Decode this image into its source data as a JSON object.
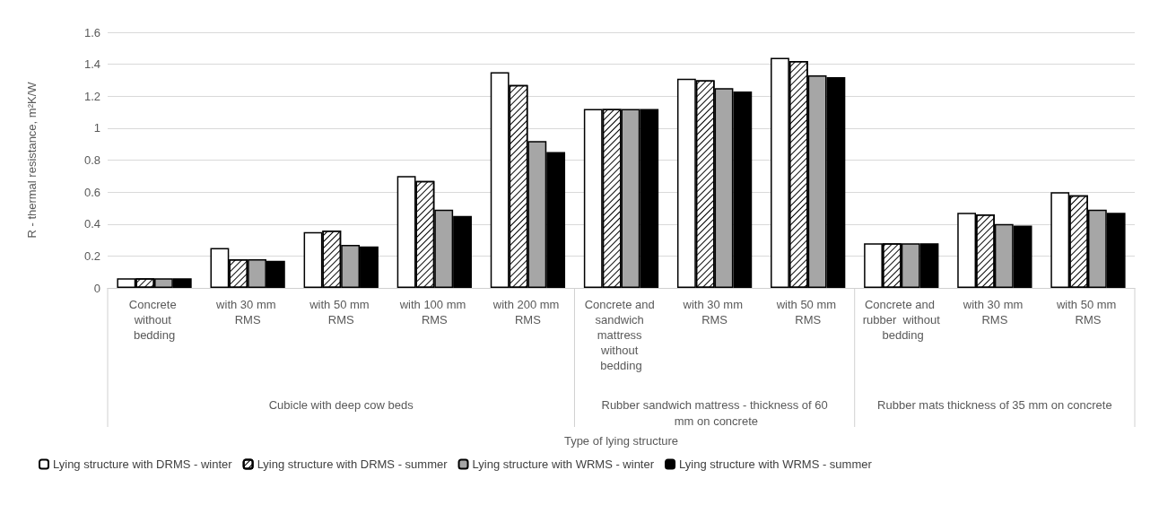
{
  "chart_data": {
    "type": "bar",
    "ylabel": "R - thermal resistance, m²K/W",
    "categories": [
      "Concrete without bedding",
      "with 30 mm RMS",
      "with 50 mm RMS",
      "with 100 mm RMS",
      "with 200 mm RMS",
      "Concrete and sandwich mattress without bedding",
      "with 30 mm RMS",
      "with 50 mm RMS",
      "Concrete and rubber  without bedding",
      "with 30 mm RMS",
      "with 50 mm RMS"
    ],
    "series": [
      {
        "name": "Lying structure with DRMS - winter",
        "color": "#ffffff",
        "values": [
          0.06,
          0.25,
          0.35,
          0.7,
          1.35,
          1.12,
          1.31,
          1.44,
          0.28,
          0.47,
          0.6
        ]
      },
      {
        "name": "Lying structure with DRMS - summer",
        "color": "#ffffff",
        "values": [
          0.06,
          0.18,
          0.36,
          0.67,
          1.27,
          1.12,
          1.3,
          1.42,
          0.28,
          0.46,
          0.58
        ]
      },
      {
        "name": "Lying structure with WRMS - winter",
        "color": "#a6a6a6",
        "values": [
          0.06,
          0.18,
          0.27,
          0.49,
          0.92,
          1.12,
          1.25,
          1.33,
          0.28,
          0.4,
          0.49
        ]
      },
      {
        "name": "Lying structure with WRMS - summer",
        "color": "#000000",
        "values": [
          0.06,
          0.17,
          0.26,
          0.45,
          0.85,
          1.12,
          1.23,
          1.32,
          0.28,
          0.39,
          0.47
        ]
      }
    ],
    "annotations": [
      "Cubicle with deep cow beds",
      "Rubber sandwich mattress - thickness of 60 mm on concrete",
      "Rubber mats thickness of 35 mm on concrete",
      "Type of lying structure"
    ],
    "ylim": [
      0,
      1.6
    ],
    "yticks": [
      0,
      0.2,
      0.4,
      0.6,
      0.8,
      1,
      1.2,
      1.4,
      1.6
    ],
    "grid": "y",
    "legend": "bottom left"
  }
}
